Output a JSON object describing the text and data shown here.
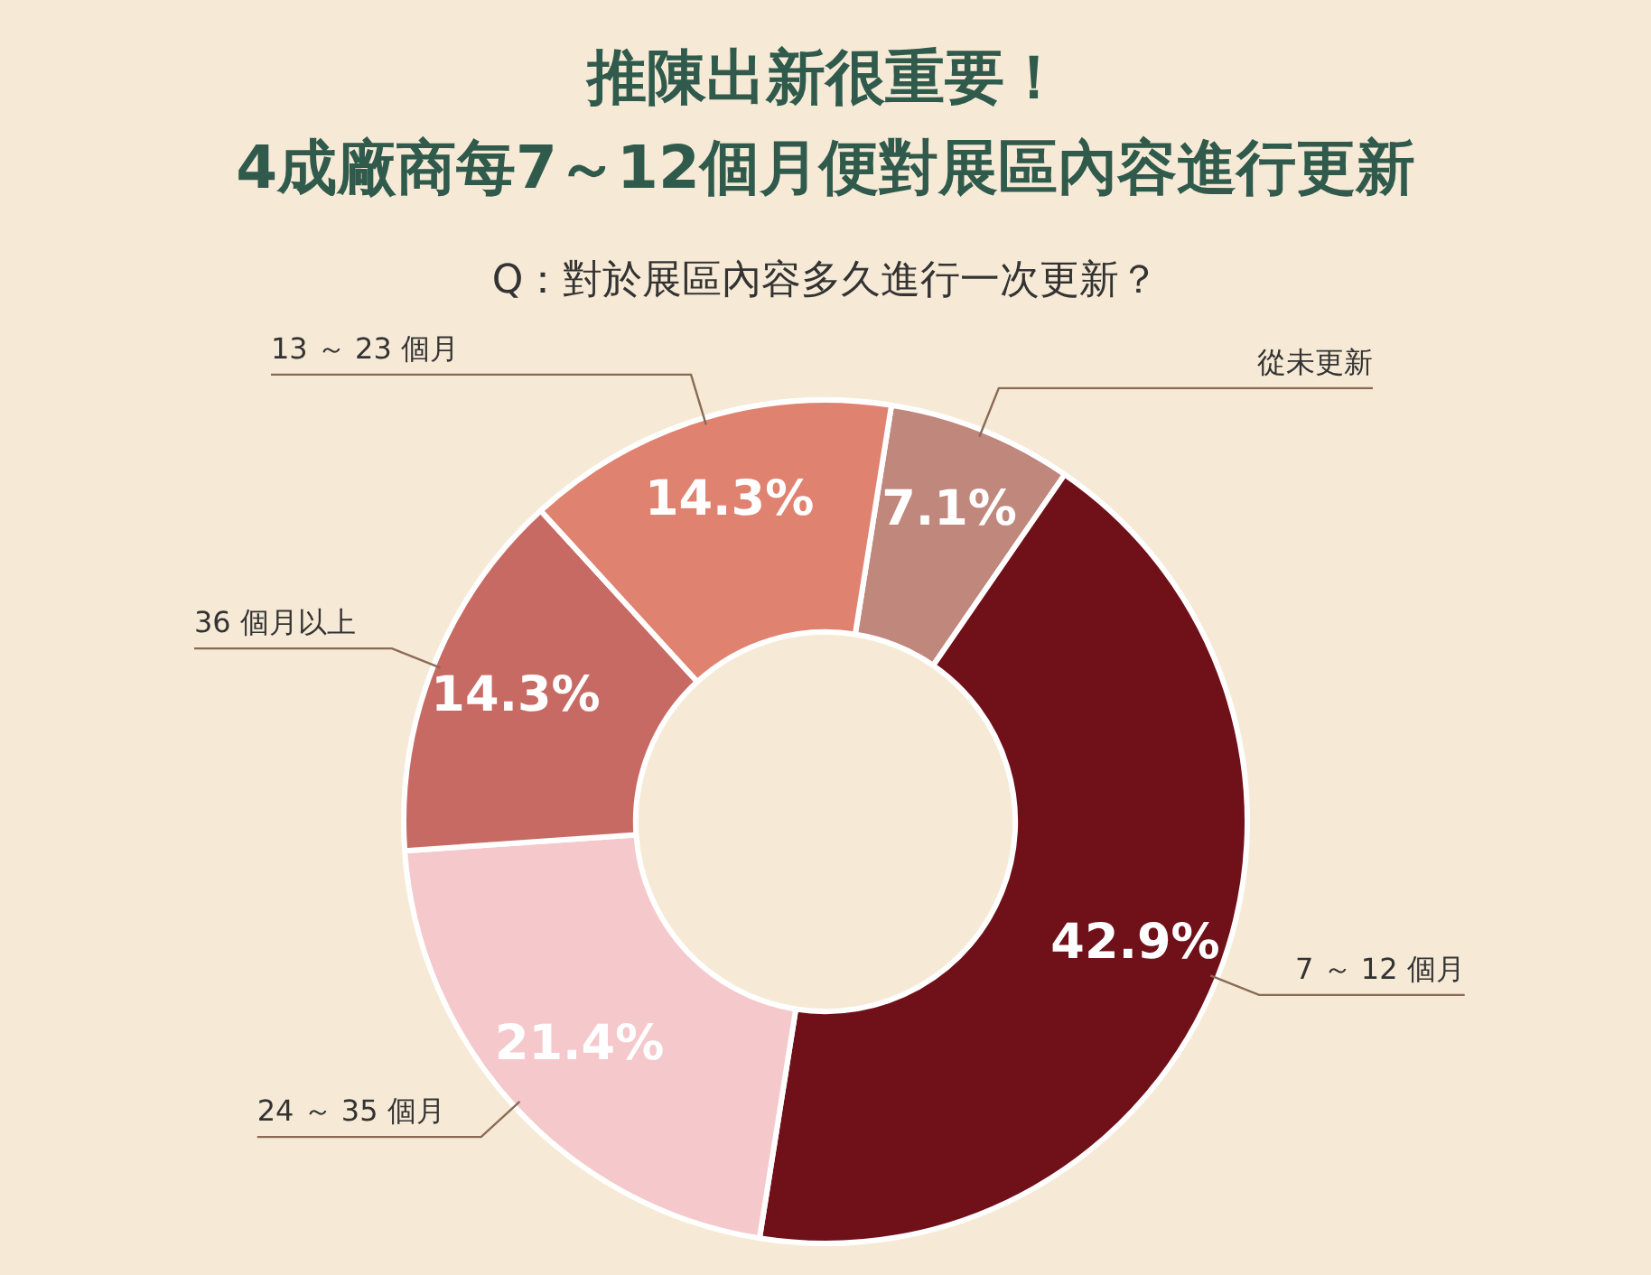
{
  "chart_data": {
    "type": "donut",
    "title": "推陳出新很重要！\n4成廠商每7～12個月便對展區內容進行更新",
    "subtitle": "Q：對於展區內容多久進行一次更新？",
    "categories": [
      "從未更新",
      "7 ～ 12 個月",
      "24 ～ 35 個月",
      "36 個月以上",
      "13 ～ 23 個月"
    ],
    "values": [
      7.1,
      42.9,
      21.4,
      14.3,
      14.3
    ],
    "value_labels": [
      "7.1%",
      "42.9%",
      "21.4%",
      "14.3%",
      "14.3%"
    ],
    "colors": [
      "#c0877c",
      "#701018",
      "#f5c9cb",
      "#c86a64",
      "#e08270"
    ],
    "legend": false
  }
}
